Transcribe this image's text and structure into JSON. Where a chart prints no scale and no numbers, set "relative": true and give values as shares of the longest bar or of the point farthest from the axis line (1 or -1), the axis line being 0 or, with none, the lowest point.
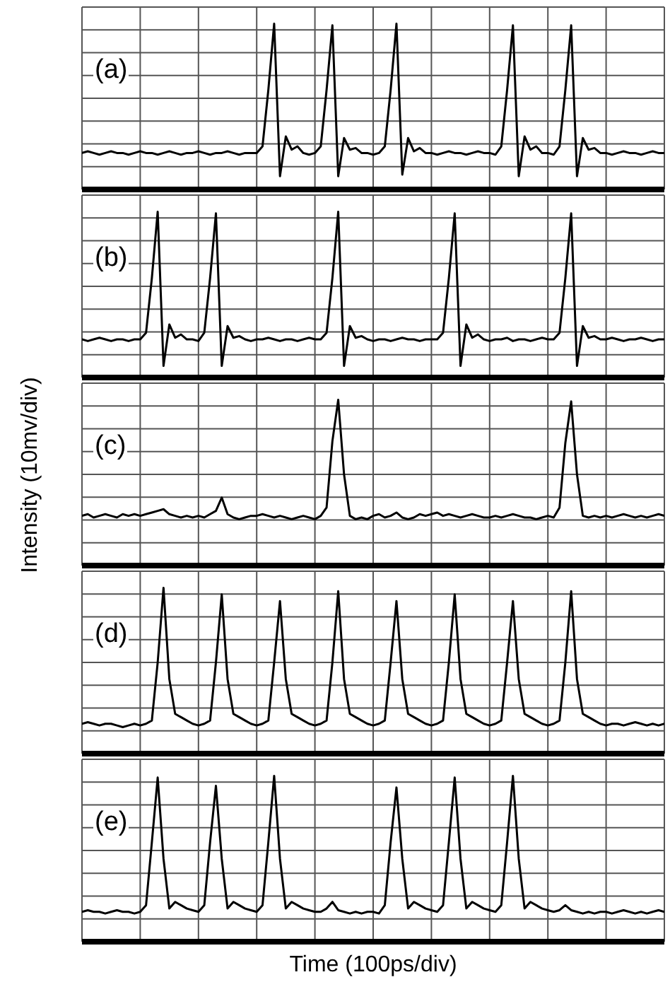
{
  "chart_data": [
    {
      "type": "line",
      "title": "(a)",
      "relative": true,
      "grid": true,
      "marker": "none",
      "categories": [
        null,
        null,
        null,
        null,
        null,
        null,
        null,
        null,
        null,
        null,
        null,
        null,
        null,
        null,
        null,
        null,
        null,
        null,
        null,
        null,
        null,
        null,
        null,
        null,
        null,
        null,
        null,
        null,
        null,
        null,
        null,
        null,
        null,
        null,
        null,
        null,
        null,
        null,
        null,
        null,
        null,
        null,
        null,
        null,
        null,
        null,
        null,
        null,
        null,
        null,
        null,
        null,
        null,
        null,
        null,
        null,
        null,
        null,
        null,
        null,
        null,
        null,
        null,
        null,
        null,
        null,
        null,
        null,
        null,
        null,
        null,
        null,
        null,
        null,
        null,
        null,
        null,
        null,
        null,
        null,
        null,
        null,
        null,
        null,
        null,
        null,
        null,
        null,
        null,
        null,
        null,
        null,
        null,
        null,
        null,
        null,
        null,
        null,
        null,
        null,
        null
      ],
      "series": [
        {
          "color": "#000000",
          "values": [
            0.22,
            0.23,
            0.22,
            0.21,
            0.22,
            0.23,
            0.22,
            0.22,
            0.21,
            0.22,
            0.23,
            0.22,
            0.22,
            0.21,
            0.22,
            0.23,
            0.22,
            0.21,
            0.22,
            0.22,
            0.23,
            0.22,
            0.21,
            0.22,
            0.22,
            0.23,
            0.22,
            0.21,
            0.22,
            0.22,
            0.22,
            0.26,
            0.6,
            1.0,
            0.08,
            0.32,
            0.24,
            0.26,
            0.22,
            0.21,
            0.22,
            0.26,
            0.6,
            0.99,
            0.08,
            0.31,
            0.24,
            0.25,
            0.22,
            0.22,
            0.21,
            0.22,
            0.26,
            0.6,
            1.0,
            0.09,
            0.31,
            0.23,
            0.25,
            0.22,
            0.22,
            0.21,
            0.22,
            0.23,
            0.22,
            0.22,
            0.21,
            0.22,
            0.23,
            0.22,
            0.22,
            0.21,
            0.26,
            0.6,
            0.99,
            0.08,
            0.32,
            0.24,
            0.26,
            0.22,
            0.22,
            0.21,
            0.26,
            0.6,
            0.99,
            0.08,
            0.31,
            0.24,
            0.25,
            0.22,
            0.22,
            0.21,
            0.22,
            0.23,
            0.22,
            0.22,
            0.21,
            0.22,
            0.23,
            0.22,
            0.22
          ]
        }
      ]
    },
    {
      "type": "line",
      "title": "(b)",
      "relative": true,
      "grid": true,
      "marker": "none",
      "categories": [
        null,
        null,
        null,
        null,
        null,
        null,
        null,
        null,
        null,
        null,
        null,
        null,
        null,
        null,
        null,
        null,
        null,
        null,
        null,
        null,
        null,
        null,
        null,
        null,
        null,
        null,
        null,
        null,
        null,
        null,
        null,
        null,
        null,
        null,
        null,
        null,
        null,
        null,
        null,
        null,
        null,
        null,
        null,
        null,
        null,
        null,
        null,
        null,
        null,
        null,
        null,
        null,
        null,
        null,
        null,
        null,
        null,
        null,
        null,
        null,
        null,
        null,
        null,
        null,
        null,
        null,
        null,
        null,
        null,
        null,
        null,
        null,
        null,
        null,
        null,
        null,
        null,
        null,
        null,
        null,
        null,
        null,
        null,
        null,
        null,
        null,
        null,
        null,
        null,
        null,
        null,
        null,
        null,
        null,
        null,
        null,
        null,
        null,
        null,
        null,
        null
      ],
      "series": [
        {
          "color": "#000000",
          "values": [
            0.23,
            0.22,
            0.23,
            0.24,
            0.23,
            0.22,
            0.23,
            0.23,
            0.22,
            0.23,
            0.23,
            0.27,
            0.6,
            1.0,
            0.07,
            0.32,
            0.24,
            0.26,
            0.23,
            0.23,
            0.22,
            0.27,
            0.6,
            0.99,
            0.07,
            0.31,
            0.24,
            0.25,
            0.23,
            0.22,
            0.23,
            0.23,
            0.24,
            0.23,
            0.22,
            0.23,
            0.23,
            0.22,
            0.23,
            0.24,
            0.23,
            0.23,
            0.27,
            0.6,
            1.0,
            0.07,
            0.31,
            0.24,
            0.25,
            0.23,
            0.22,
            0.23,
            0.23,
            0.22,
            0.23,
            0.24,
            0.23,
            0.23,
            0.22,
            0.23,
            0.23,
            0.23,
            0.27,
            0.6,
            0.99,
            0.07,
            0.32,
            0.24,
            0.26,
            0.23,
            0.22,
            0.23,
            0.23,
            0.24,
            0.22,
            0.23,
            0.23,
            0.22,
            0.23,
            0.24,
            0.23,
            0.23,
            0.27,
            0.6,
            0.99,
            0.07,
            0.31,
            0.24,
            0.25,
            0.23,
            0.23,
            0.24,
            0.23,
            0.22,
            0.23,
            0.23,
            0.24,
            0.23,
            0.22,
            0.23,
            0.23
          ]
        }
      ]
    },
    {
      "type": "line",
      "title": "(c)",
      "ylabel": "Intensity (10mv/div)",
      "relative": true,
      "grid": true,
      "marker": "none",
      "categories": [
        null,
        null,
        null,
        null,
        null,
        null,
        null,
        null,
        null,
        null,
        null,
        null,
        null,
        null,
        null,
        null,
        null,
        null,
        null,
        null,
        null,
        null,
        null,
        null,
        null,
        null,
        null,
        null,
        null,
        null,
        null,
        null,
        null,
        null,
        null,
        null,
        null,
        null,
        null,
        null,
        null,
        null,
        null,
        null,
        null,
        null,
        null,
        null,
        null,
        null,
        null,
        null,
        null,
        null,
        null,
        null,
        null,
        null,
        null,
        null,
        null,
        null,
        null,
        null,
        null,
        null,
        null,
        null,
        null,
        null,
        null,
        null,
        null,
        null,
        null,
        null,
        null,
        null,
        null,
        null,
        null,
        null,
        null,
        null,
        null,
        null,
        null,
        null,
        null,
        null,
        null,
        null,
        null,
        null,
        null,
        null,
        null,
        null,
        null,
        null,
        null
      ],
      "series": [
        {
          "color": "#000000",
          "values": [
            0.3,
            0.31,
            0.29,
            0.3,
            0.31,
            0.3,
            0.29,
            0.31,
            0.3,
            0.31,
            0.3,
            0.31,
            0.32,
            0.33,
            0.34,
            0.31,
            0.3,
            0.29,
            0.3,
            0.29,
            0.3,
            0.29,
            0.31,
            0.33,
            0.41,
            0.31,
            0.29,
            0.28,
            0.29,
            0.3,
            0.3,
            0.31,
            0.3,
            0.29,
            0.3,
            0.29,
            0.28,
            0.29,
            0.3,
            0.29,
            0.28,
            0.3,
            0.35,
            0.75,
            1.0,
            0.55,
            0.3,
            0.28,
            0.29,
            0.28,
            0.3,
            0.31,
            0.29,
            0.3,
            0.32,
            0.29,
            0.28,
            0.29,
            0.31,
            0.3,
            0.31,
            0.32,
            0.3,
            0.31,
            0.3,
            0.29,
            0.3,
            0.31,
            0.3,
            0.29,
            0.29,
            0.3,
            0.29,
            0.3,
            0.31,
            0.3,
            0.29,
            0.29,
            0.28,
            0.29,
            0.3,
            0.29,
            0.35,
            0.74,
            0.99,
            0.55,
            0.3,
            0.29,
            0.3,
            0.29,
            0.3,
            0.29,
            0.3,
            0.31,
            0.3,
            0.29,
            0.3,
            0.29,
            0.3,
            0.31,
            0.3
          ]
        }
      ]
    },
    {
      "type": "line",
      "title": "(d)",
      "relative": true,
      "grid": true,
      "marker": "none",
      "categories": [
        null,
        null,
        null,
        null,
        null,
        null,
        null,
        null,
        null,
        null,
        null,
        null,
        null,
        null,
        null,
        null,
        null,
        null,
        null,
        null,
        null,
        null,
        null,
        null,
        null,
        null,
        null,
        null,
        null,
        null,
        null,
        null,
        null,
        null,
        null,
        null,
        null,
        null,
        null,
        null,
        null,
        null,
        null,
        null,
        null,
        null,
        null,
        null,
        null,
        null,
        null,
        null,
        null,
        null,
        null,
        null,
        null,
        null,
        null,
        null,
        null,
        null,
        null,
        null,
        null,
        null,
        null,
        null,
        null,
        null,
        null,
        null,
        null,
        null,
        null,
        null,
        null,
        null,
        null,
        null,
        null,
        null,
        null,
        null,
        null,
        null,
        null,
        null,
        null,
        null,
        null,
        null,
        null,
        null,
        null,
        null,
        null,
        null,
        null,
        null,
        null
      ],
      "series": [
        {
          "color": "#000000",
          "values": [
            0.18,
            0.19,
            0.18,
            0.17,
            0.18,
            0.18,
            0.17,
            0.16,
            0.17,
            0.18,
            0.17,
            0.18,
            0.2,
            0.55,
            1.0,
            0.45,
            0.24,
            0.22,
            0.2,
            0.18,
            0.17,
            0.18,
            0.2,
            0.55,
            0.96,
            0.45,
            0.24,
            0.22,
            0.2,
            0.18,
            0.17,
            0.18,
            0.2,
            0.55,
            0.92,
            0.45,
            0.24,
            0.22,
            0.2,
            0.18,
            0.17,
            0.18,
            0.2,
            0.55,
            0.98,
            0.45,
            0.24,
            0.22,
            0.2,
            0.18,
            0.17,
            0.18,
            0.2,
            0.55,
            0.92,
            0.45,
            0.24,
            0.22,
            0.2,
            0.18,
            0.17,
            0.18,
            0.2,
            0.55,
            0.96,
            0.45,
            0.24,
            0.22,
            0.2,
            0.18,
            0.17,
            0.18,
            0.2,
            0.55,
            0.92,
            0.45,
            0.24,
            0.22,
            0.2,
            0.18,
            0.17,
            0.18,
            0.2,
            0.55,
            0.98,
            0.45,
            0.24,
            0.22,
            0.2,
            0.18,
            0.17,
            0.18,
            0.18,
            0.17,
            0.18,
            0.19,
            0.18,
            0.17,
            0.18,
            0.17,
            0.18
          ]
        }
      ]
    },
    {
      "type": "line",
      "title": "(e)",
      "xlabel": "Time (100ps/div)",
      "relative": true,
      "grid": true,
      "marker": "none",
      "categories": [
        null,
        null,
        null,
        null,
        null,
        null,
        null,
        null,
        null,
        null,
        null,
        null,
        null,
        null,
        null,
        null,
        null,
        null,
        null,
        null,
        null,
        null,
        null,
        null,
        null,
        null,
        null,
        null,
        null,
        null,
        null,
        null,
        null,
        null,
        null,
        null,
        null,
        null,
        null,
        null,
        null,
        null,
        null,
        null,
        null,
        null,
        null,
        null,
        null,
        null,
        null,
        null,
        null,
        null,
        null,
        null,
        null,
        null,
        null,
        null,
        null,
        null,
        null,
        null,
        null,
        null,
        null,
        null,
        null,
        null,
        null,
        null,
        null,
        null,
        null,
        null,
        null,
        null,
        null,
        null,
        null,
        null,
        null,
        null,
        null,
        null,
        null,
        null,
        null,
        null,
        null,
        null,
        null,
        null,
        null,
        null,
        null,
        null,
        null,
        null,
        null
      ],
      "series": [
        {
          "color": "#000000",
          "values": [
            0.18,
            0.19,
            0.18,
            0.18,
            0.17,
            0.18,
            0.19,
            0.18,
            0.18,
            0.17,
            0.18,
            0.22,
            0.6,
            0.99,
            0.5,
            0.2,
            0.24,
            0.22,
            0.2,
            0.19,
            0.18,
            0.22,
            0.6,
            0.94,
            0.5,
            0.2,
            0.24,
            0.22,
            0.2,
            0.19,
            0.18,
            0.22,
            0.6,
            1.0,
            0.5,
            0.2,
            0.24,
            0.22,
            0.2,
            0.19,
            0.18,
            0.18,
            0.2,
            0.24,
            0.19,
            0.18,
            0.17,
            0.18,
            0.17,
            0.18,
            0.18,
            0.17,
            0.22,
            0.6,
            0.93,
            0.5,
            0.2,
            0.24,
            0.22,
            0.2,
            0.19,
            0.18,
            0.22,
            0.6,
            0.99,
            0.5,
            0.2,
            0.24,
            0.22,
            0.2,
            0.19,
            0.18,
            0.22,
            0.6,
            1.0,
            0.5,
            0.2,
            0.24,
            0.22,
            0.2,
            0.19,
            0.18,
            0.19,
            0.22,
            0.19,
            0.18,
            0.17,
            0.18,
            0.17,
            0.18,
            0.18,
            0.17,
            0.18,
            0.19,
            0.18,
            0.17,
            0.18,
            0.17,
            0.18,
            0.19,
            0.18
          ]
        }
      ]
    }
  ]
}
